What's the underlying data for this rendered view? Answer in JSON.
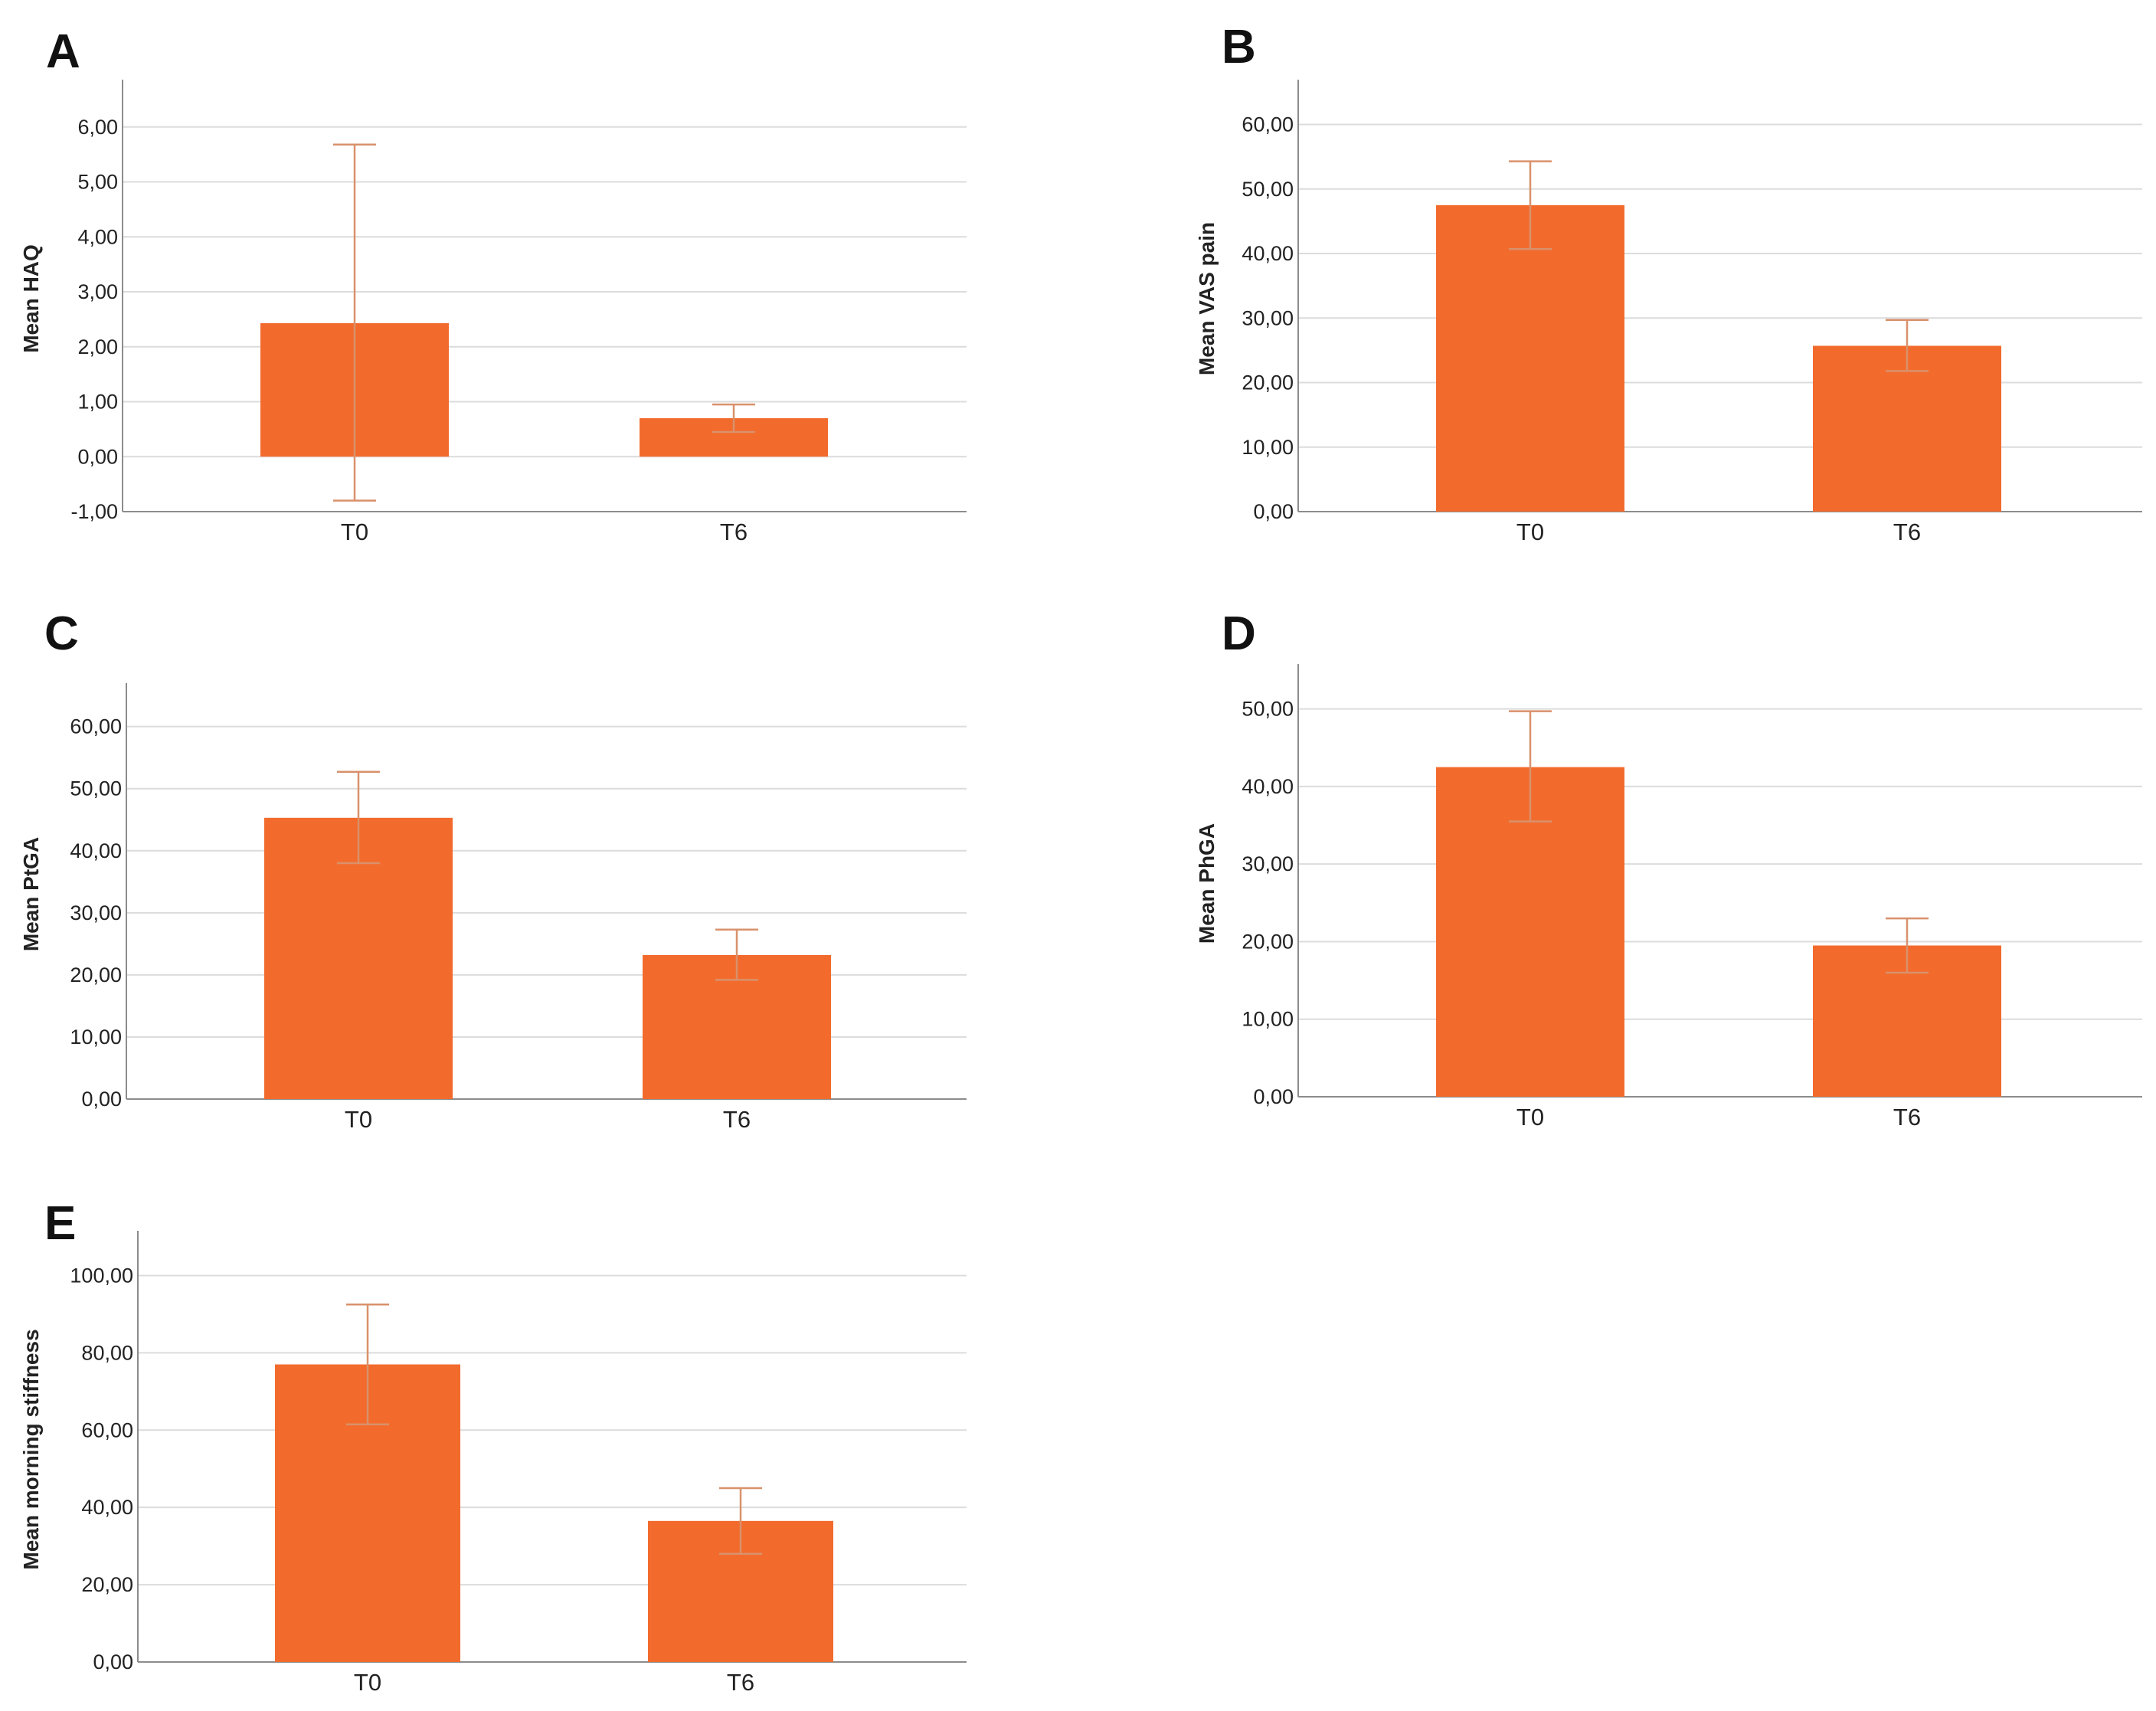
{
  "colors": {
    "bar": "#f26b2d",
    "error_bar": "#d9916b",
    "grid": "#dcdcdc",
    "axis": "#8c8c8c"
  },
  "chart_data": [
    {
      "panel": "A",
      "type": "bar",
      "categories": [
        "T0",
        "T6"
      ],
      "values": [
        2.43,
        0.7
      ],
      "error_low": [
        -0.8,
        0.45
      ],
      "error_high": [
        5.68,
        0.95
      ],
      "ylabel": "Mean HAQ",
      "ylim": [
        -1.0,
        6.75
      ],
      "yticks": [
        -1.0,
        0.0,
        1.0,
        2.0,
        3.0,
        4.0,
        5.0,
        6.0
      ],
      "ytick_labels": [
        "-1,00",
        "0,00",
        "1,00",
        "2,00",
        "3,00",
        "4,00",
        "5,00",
        "6,00"
      ],
      "grid": true
    },
    {
      "panel": "B",
      "type": "bar",
      "categories": [
        "T0",
        "T6"
      ],
      "values": [
        47.5,
        25.7
      ],
      "error_low": [
        40.7,
        21.8
      ],
      "error_high": [
        54.3,
        29.7
      ],
      "ylabel": "Mean VAS pain",
      "ylim": [
        0,
        66
      ],
      "yticks": [
        0,
        10,
        20,
        30,
        40,
        50,
        60
      ],
      "ytick_labels": [
        "0,00",
        "10,00",
        "20,00",
        "30,00",
        "40,00",
        "50,00",
        "60,00"
      ],
      "grid": true
    },
    {
      "panel": "C",
      "type": "bar",
      "categories": [
        "T0",
        "T6"
      ],
      "values": [
        45.3,
        23.2
      ],
      "error_low": [
        38.0,
        19.2
      ],
      "error_high": [
        52.7,
        27.3
      ],
      "ylabel": "Mean PtGA",
      "ylim": [
        0,
        66
      ],
      "yticks": [
        0,
        10,
        20,
        30,
        40,
        50,
        60
      ],
      "ytick_labels": [
        "0,00",
        "10,00",
        "20,00",
        "30,00",
        "40,00",
        "50,00",
        "60,00"
      ],
      "grid": true
    },
    {
      "panel": "D",
      "type": "bar",
      "categories": [
        "T0",
        "T6"
      ],
      "values": [
        42.5,
        19.5
      ],
      "error_low": [
        35.5,
        16.0
      ],
      "error_high": [
        49.7,
        23.0
      ],
      "ylabel": "Mean PhGA",
      "ylim": [
        0,
        55
      ],
      "yticks": [
        0,
        10,
        20,
        30,
        40,
        50
      ],
      "ytick_labels": [
        "0,00",
        "10,00",
        "20,00",
        "30,00",
        "40,00",
        "50,00"
      ],
      "grid": true
    },
    {
      "panel": "E",
      "type": "bar",
      "categories": [
        "T0",
        "T6"
      ],
      "values": [
        77.0,
        36.5
      ],
      "error_low": [
        61.5,
        28.0
      ],
      "error_high": [
        92.5,
        45.0
      ],
      "ylabel": "Mean morning stiffness",
      "ylim": [
        0,
        110
      ],
      "yticks": [
        0,
        20,
        40,
        60,
        80,
        100
      ],
      "ytick_labels": [
        "0,00",
        "20,00",
        "40,00",
        "60,00",
        "80,00",
        "100,00"
      ],
      "grid": true
    }
  ]
}
